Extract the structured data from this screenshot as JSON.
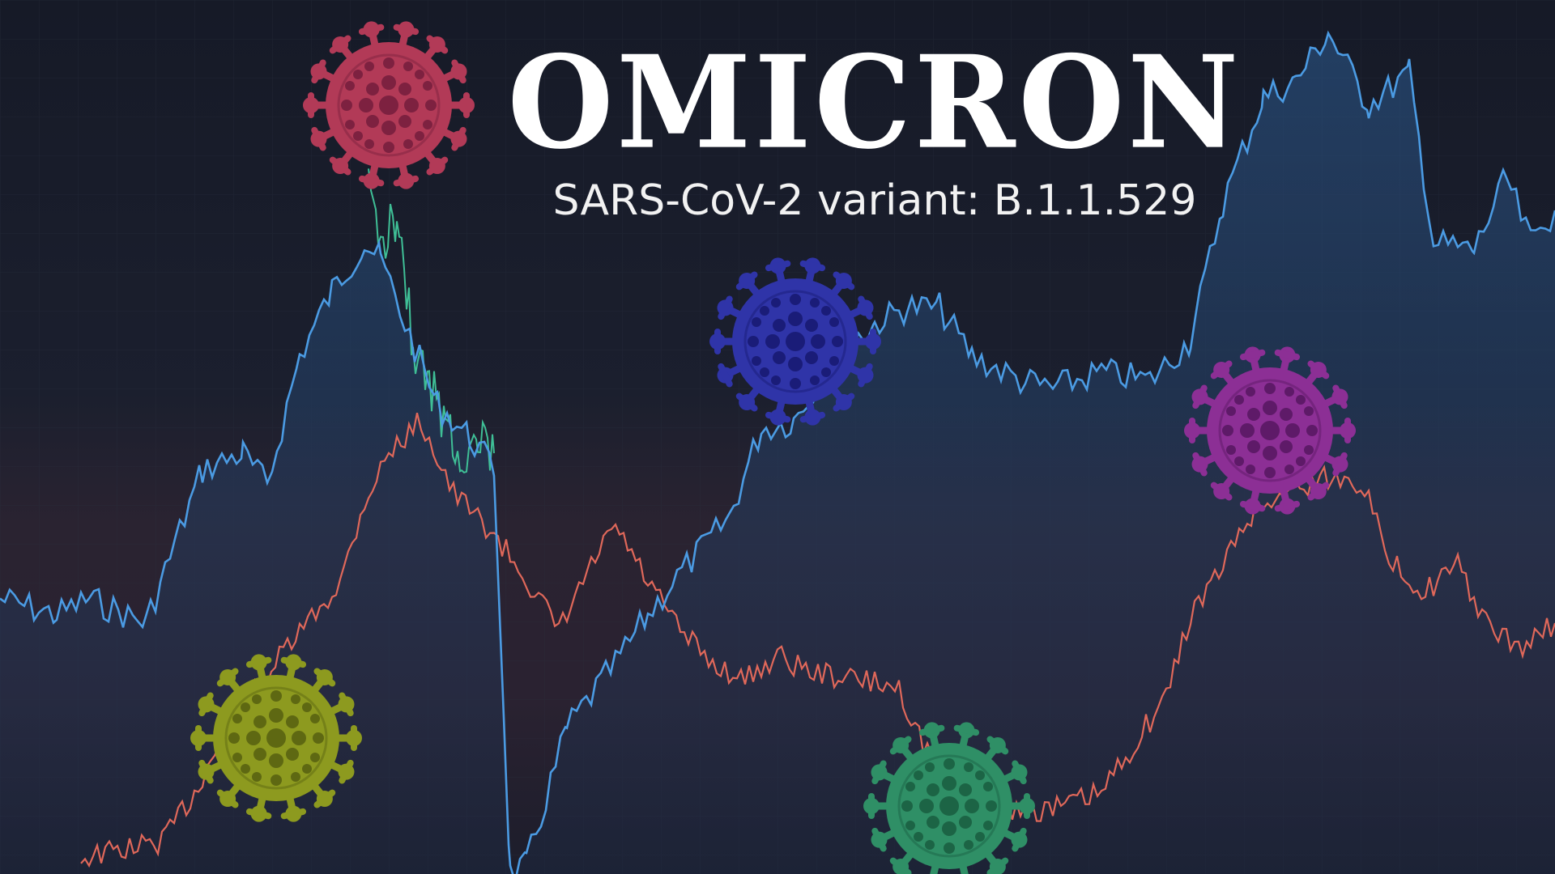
{
  "title": "OMICRON",
  "subtitle": "SARS-CoV-2 variant: B.1.1.529",
  "colors": {
    "background": "#171b28",
    "blue_line": "#4b9be3",
    "red_line": "#e0685a",
    "green_line": "#3fbf96",
    "title": "#ffffff"
  },
  "viruses": [
    {
      "name": "virus-red-icon",
      "color": "#b23a57",
      "dark": "#7d2140"
    },
    {
      "name": "virus-blue-icon",
      "color": "#2f34a8",
      "dark": "#1a1c78"
    },
    {
      "name": "virus-purple-icon",
      "color": "#8c2f95",
      "dark": "#5e1a68"
    },
    {
      "name": "virus-olive-icon",
      "color": "#8d9a1f",
      "dark": "#5e6812"
    },
    {
      "name": "virus-green-icon",
      "color": "#2f8f66",
      "dark": "#1c6445"
    }
  ]
}
